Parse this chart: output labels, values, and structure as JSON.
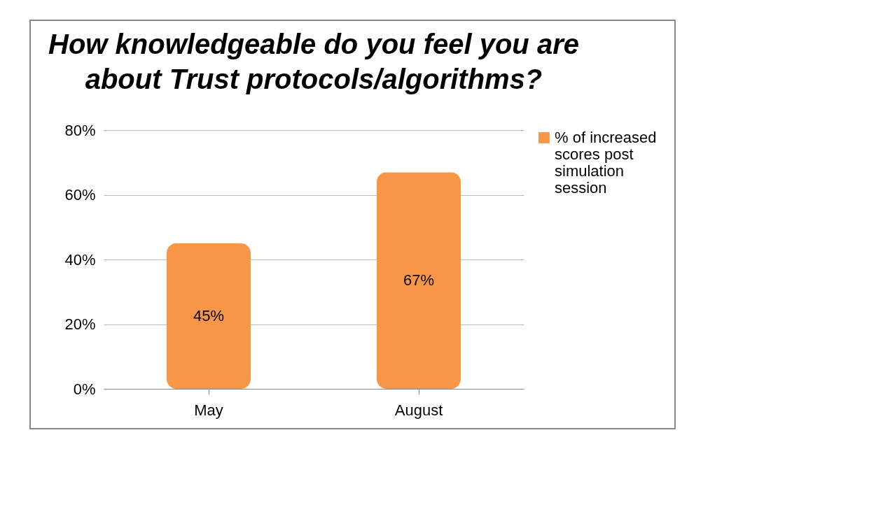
{
  "chart_data": {
    "type": "bar",
    "title": "How knowledgeable do you feel you are about Trust protocols/algorithms?",
    "categories": [
      "May",
      "August"
    ],
    "series": [
      {
        "name": "% of increased scores post simulation session",
        "color": "#f79646",
        "values": [
          45,
          67
        ],
        "value_labels": [
          "45%",
          "67%"
        ]
      }
    ],
    "ylim": [
      0,
      80
    ],
    "yticks": [
      {
        "value": 0,
        "label": "0%"
      },
      {
        "value": 20,
        "label": "20%"
      },
      {
        "value": 40,
        "label": "40%"
      },
      {
        "value": 60,
        "label": "60%"
      },
      {
        "value": 80,
        "label": "80%"
      }
    ],
    "grid": "y",
    "legend": "right"
  }
}
